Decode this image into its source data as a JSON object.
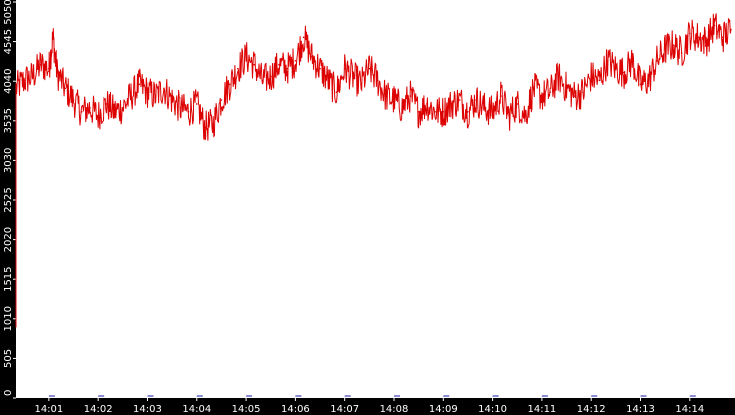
{
  "chart_data": {
    "type": "line",
    "title": "",
    "xlabel": "",
    "ylabel": "",
    "colors": {
      "background": "#000000",
      "plot_background": "#ffffff",
      "series_line": "#dd0000",
      "secondary_ticks": "#1a1aa6",
      "tick_text": "#ffffff"
    },
    "grid": false,
    "legend": "none",
    "ylim": [
      0,
      5050
    ],
    "y_ticks": [
      0,
      505,
      1010,
      1515,
      2020,
      2525,
      3030,
      3535,
      4040,
      4545,
      5050
    ],
    "y_tick_labels": [
      "0",
      "505",
      "1010",
      "1515",
      "2020",
      "2525",
      "3030",
      "3535",
      "4040",
      "4545",
      "5050"
    ],
    "x_time_range": [
      "14:00:20",
      "14:14:55"
    ],
    "x_ticks": [
      "14:01",
      "14:02",
      "14:03",
      "14:04",
      "14:05",
      "14:06",
      "14:07",
      "14:08",
      "14:09",
      "14:10",
      "14:11",
      "14:12",
      "14:13",
      "14:14"
    ],
    "series": [
      {
        "x": [
          "14:00:20",
          "14:00:30",
          "14:00:40",
          "14:00:50",
          "14:01:00",
          "14:01:05",
          "14:01:10",
          "14:01:20",
          "14:01:30",
          "14:01:40",
          "14:01:50",
          "14:02:00",
          "14:02:10",
          "14:02:20",
          "14:02:30",
          "14:02:40",
          "14:02:50",
          "14:03:00",
          "14:03:10",
          "14:03:20",
          "14:03:30",
          "14:03:40",
          "14:03:50",
          "14:04:00",
          "14:04:10",
          "14:04:20",
          "14:04:30",
          "14:04:40",
          "14:04:50",
          "14:05:00",
          "14:05:10",
          "14:05:20",
          "14:05:30",
          "14:05:40",
          "14:05:50",
          "14:06:00",
          "14:06:10",
          "14:06:20",
          "14:06:30",
          "14:06:40",
          "14:06:50",
          "14:07:00",
          "14:07:10",
          "14:07:20",
          "14:07:30",
          "14:07:40",
          "14:07:50",
          "14:08:00",
          "14:08:10",
          "14:08:20",
          "14:08:30",
          "14:08:40",
          "14:08:50",
          "14:09:00",
          "14:09:10",
          "14:09:20",
          "14:09:30",
          "14:09:40",
          "14:09:50",
          "14:10:00",
          "14:10:10",
          "14:10:20",
          "14:10:30",
          "14:10:40",
          "14:10:50",
          "14:11:00",
          "14:11:10",
          "14:11:20",
          "14:11:30",
          "14:11:40",
          "14:11:50",
          "14:12:00",
          "14:12:10",
          "14:12:20",
          "14:12:30",
          "14:12:40",
          "14:12:50",
          "14:13:00",
          "14:13:10",
          "14:13:20",
          "14:13:30",
          "14:13:40",
          "14:13:50",
          "14:14:00",
          "14:14:10",
          "14:14:20",
          "14:14:30",
          "14:14:40",
          "14:14:50"
        ],
        "values": [
          3950,
          4050,
          4100,
          4250,
          4200,
          4600,
          4150,
          3950,
          3800,
          3650,
          3700,
          3600,
          3750,
          3650,
          3700,
          3850,
          4000,
          3900,
          3850,
          3950,
          3800,
          3700,
          3650,
          3750,
          3450,
          3500,
          3800,
          4000,
          4200,
          4350,
          4250,
          4050,
          4100,
          4250,
          4200,
          4300,
          4600,
          4350,
          4200,
          4050,
          3900,
          4200,
          4100,
          4000,
          4200,
          4050,
          3850,
          3800,
          3700,
          3850,
          3650,
          3750,
          3650,
          3650,
          3750,
          3800,
          3650,
          3800,
          3700,
          3650,
          3850,
          3600,
          3750,
          3600,
          3950,
          3850,
          3900,
          4100,
          3950,
          3850,
          3900,
          4100,
          4050,
          4300,
          4200,
          4150,
          4300,
          4000,
          4050,
          4300,
          4450,
          4500,
          4400,
          4650,
          4600,
          4550,
          4750,
          4600,
          4700
        ]
      }
    ]
  }
}
